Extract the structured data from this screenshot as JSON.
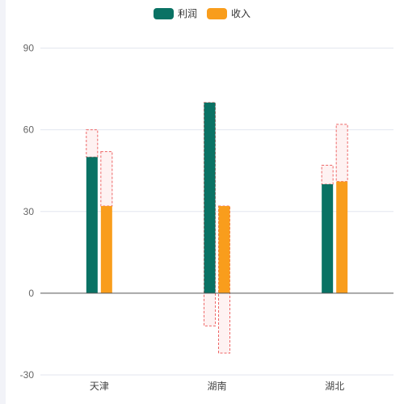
{
  "chart_data": {
    "type": "bar",
    "categories": [
      "天津",
      "湖南",
      "湖北"
    ],
    "series": [
      {
        "name": "利润",
        "color": "#0a7264",
        "values": [
          50,
          70,
          40
        ],
        "range_low": [
          50,
          -12,
          40
        ],
        "range_high": [
          60,
          70,
          47
        ]
      },
      {
        "name": "收入",
        "color": "#f99d1c",
        "values": [
          32,
          32,
          41
        ],
        "range_low": [
          32,
          -22,
          41
        ],
        "range_high": [
          52,
          32,
          62
        ]
      }
    ],
    "ylim": [
      -30,
      90
    ],
    "yticks": [
      90,
      60,
      30,
      0,
      -30
    ],
    "range_box_stroke": "#ee6666",
    "range_box_fill": "#fdeeee",
    "grid": true,
    "legend_position": "top-center",
    "title": "",
    "xlabel": "",
    "ylabel": ""
  }
}
